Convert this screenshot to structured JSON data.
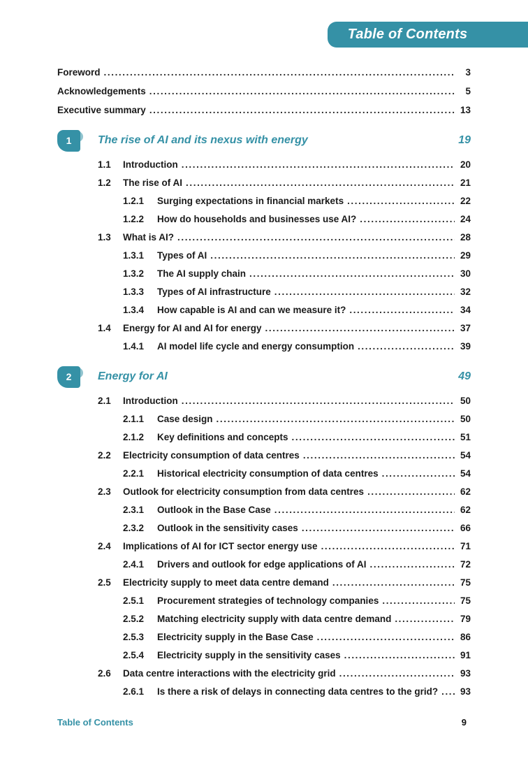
{
  "accent_color": "#3591A6",
  "banner": {
    "title": "Table of Contents"
  },
  "front_matter": [
    {
      "title": "Foreword",
      "page": "3"
    },
    {
      "title": "Acknowledgements",
      "page": "5"
    },
    {
      "title": "Executive summary",
      "page": "13"
    }
  ],
  "chapters": [
    {
      "number": "1",
      "title": "The rise of AI and its nexus with energy",
      "page": "19",
      "entries": [
        {
          "num": "1.1",
          "level": 1,
          "title": "Introduction",
          "page": "20"
        },
        {
          "num": "1.2",
          "level": 1,
          "title": "The rise of AI",
          "page": "21"
        },
        {
          "num": "1.2.1",
          "level": 2,
          "title": "Surging expectations in financial markets",
          "page": "22"
        },
        {
          "num": "1.2.2",
          "level": 2,
          "title": "How do households and businesses use AI?",
          "page": "24"
        },
        {
          "num": "1.3",
          "level": 1,
          "title": "What is AI?",
          "page": "28"
        },
        {
          "num": "1.3.1",
          "level": 2,
          "title": "Types of AI",
          "page": "29"
        },
        {
          "num": "1.3.2",
          "level": 2,
          "title": "The AI supply chain",
          "page": "30"
        },
        {
          "num": "1.3.3",
          "level": 2,
          "title": "Types of AI infrastructure",
          "page": "32"
        },
        {
          "num": "1.3.4",
          "level": 2,
          "title": "How capable is AI and can we measure it?",
          "page": "34"
        },
        {
          "num": "1.4",
          "level": 1,
          "title": "Energy for AI and AI for energy",
          "page": "37"
        },
        {
          "num": "1.4.1",
          "level": 2,
          "title": "AI model life cycle and energy consumption",
          "page": "39"
        }
      ]
    },
    {
      "number": "2",
      "title": "Energy for AI",
      "page": "49",
      "entries": [
        {
          "num": "2.1",
          "level": 1,
          "title": "Introduction",
          "page": "50"
        },
        {
          "num": "2.1.1",
          "level": 2,
          "title": "Case design",
          "page": "50"
        },
        {
          "num": "2.1.2",
          "level": 2,
          "title": "Key definitions and concepts",
          "page": "51"
        },
        {
          "num": "2.2",
          "level": 1,
          "title": "Electricity consumption of data centres",
          "page": "54"
        },
        {
          "num": "2.2.1",
          "level": 2,
          "title": "Historical electricity consumption of data centres",
          "page": "54"
        },
        {
          "num": "2.3",
          "level": 1,
          "title": "Outlook for electricity consumption from data centres",
          "page": "62"
        },
        {
          "num": "2.3.1",
          "level": 2,
          "title": "Outlook in the Base Case",
          "page": "62"
        },
        {
          "num": "2.3.2",
          "level": 2,
          "title": "Outlook in the sensitivity cases",
          "page": "66"
        },
        {
          "num": "2.4",
          "level": 1,
          "title": "Implications of AI for ICT sector energy use",
          "page": "71"
        },
        {
          "num": "2.4.1",
          "level": 2,
          "title": "Drivers and outlook for edge applications of AI",
          "page": "72"
        },
        {
          "num": "2.5",
          "level": 1,
          "title": "Electricity supply to meet data centre demand",
          "page": "75"
        },
        {
          "num": "2.5.1",
          "level": 2,
          "title": "Procurement strategies of technology companies",
          "page": "75"
        },
        {
          "num": "2.5.2",
          "level": 2,
          "title": "Matching electricity supply with data centre demand",
          "page": "79"
        },
        {
          "num": "2.5.3",
          "level": 2,
          "title": "Electricity supply in the Base Case",
          "page": "86"
        },
        {
          "num": "2.5.4",
          "level": 2,
          "title": "Electricity supply in the sensitivity cases",
          "page": "91"
        },
        {
          "num": "2.6",
          "level": 1,
          "title": "Data centre interactions with the electricity grid",
          "page": "93"
        },
        {
          "num": "2.6.1",
          "level": 2,
          "title": "Is there a risk of delays in connecting data centres to the grid?",
          "page": "93"
        }
      ]
    }
  ],
  "footer": {
    "left": "Table of Contents",
    "page_number": "9"
  }
}
